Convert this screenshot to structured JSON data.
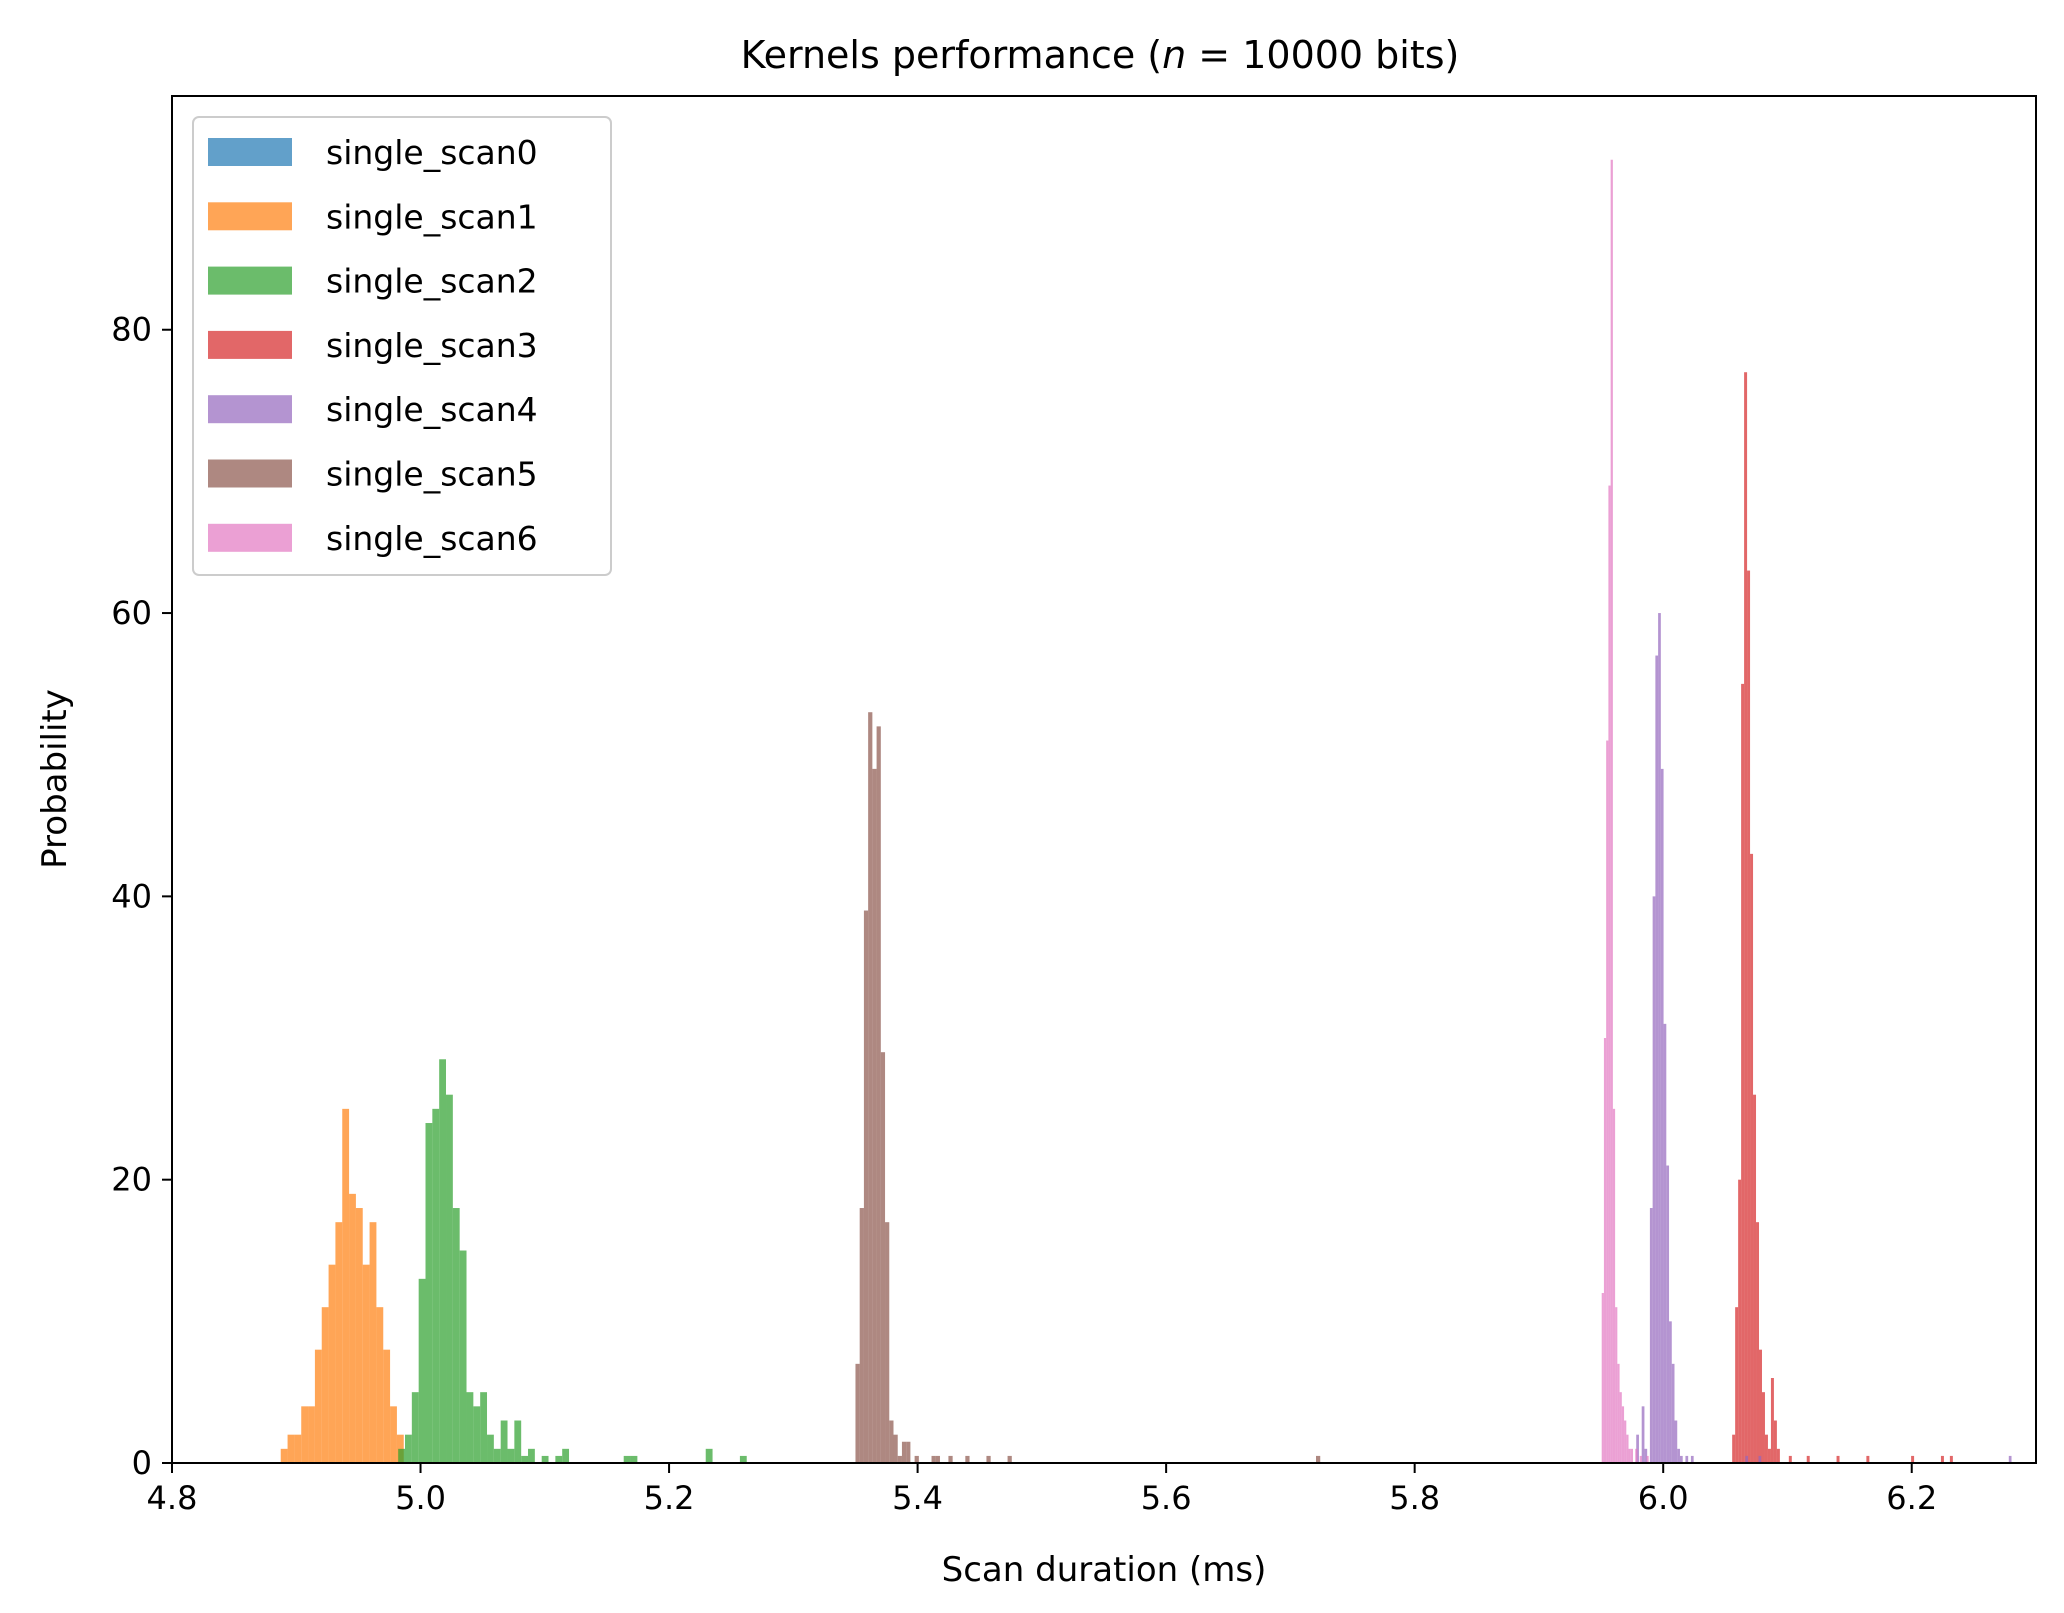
{
  "chart_data": {
    "type": "histogram",
    "title": "Kernels performance (n = 10000 bits)",
    "title_parts": {
      "prefix": "Kernels performance (",
      "var": "n",
      "suffix": " = 10000 bits)"
    },
    "xlabel": "Scan duration (ms)",
    "ylabel": "Probability",
    "xlim": [
      4.8,
      6.3
    ],
    "ylim": [
      0,
      96.5
    ],
    "xticks": [
      4.8,
      5.0,
      5.2,
      5.4,
      5.6,
      5.8,
      6.0,
      6.2
    ],
    "xtick_labels": [
      "4.8",
      "5.0",
      "5.2",
      "5.4",
      "5.6",
      "5.8",
      "6.0",
      "6.2"
    ],
    "yticks": [
      0,
      20,
      40,
      60,
      80
    ],
    "ytick_labels": [
      "0",
      "20",
      "40",
      "60",
      "80"
    ],
    "grid": false,
    "legend_position": "top-left",
    "alpha": 0.7,
    "series": [
      {
        "name": "single_scan0",
        "color": "#1f77b4",
        "bin_width": 0.01,
        "bins": []
      },
      {
        "name": "single_scan1",
        "color": "#ff7f0e",
        "bin_width": 0.0055,
        "bins": [
          [
            4.8875,
            1
          ],
          [
            4.893,
            2
          ],
          [
            4.8985,
            2
          ],
          [
            4.904,
            4
          ],
          [
            4.9095,
            4
          ],
          [
            4.915,
            8
          ],
          [
            4.9205,
            11
          ],
          [
            4.926,
            14
          ],
          [
            4.9315,
            17
          ],
          [
            4.937,
            25
          ],
          [
            4.9425,
            19
          ],
          [
            4.948,
            18
          ],
          [
            4.9535,
            14
          ],
          [
            4.959,
            17
          ],
          [
            4.9645,
            11
          ],
          [
            4.97,
            8
          ],
          [
            4.9755,
            4
          ],
          [
            4.981,
            2
          ]
        ]
      },
      {
        "name": "single_scan2",
        "color": "#2ca02c",
        "bin_width": 0.0055,
        "bins": [
          [
            4.982,
            1
          ],
          [
            4.9875,
            2
          ],
          [
            4.993,
            5
          ],
          [
            4.9985,
            13
          ],
          [
            5.004,
            24
          ],
          [
            5.0095,
            25
          ],
          [
            5.015,
            28.5
          ],
          [
            5.0205,
            26
          ],
          [
            5.026,
            18
          ],
          [
            5.0315,
            15
          ],
          [
            5.037,
            5
          ],
          [
            5.0425,
            4
          ],
          [
            5.048,
            5
          ],
          [
            5.0535,
            2
          ],
          [
            5.059,
            1
          ],
          [
            5.0645,
            3
          ],
          [
            5.07,
            1
          ],
          [
            5.0755,
            3
          ],
          [
            5.081,
            0.5
          ],
          [
            5.0865,
            1
          ],
          [
            5.0975,
            0.5
          ],
          [
            5.1085,
            0.5
          ],
          [
            5.114,
            1
          ],
          [
            5.1635,
            0.5
          ],
          [
            5.169,
            0.5
          ],
          [
            5.2295,
            1
          ],
          [
            5.257,
            0.5
          ]
        ]
      },
      {
        "name": "single_scan3",
        "color": "#d62728",
        "bin_width": 0.0024,
        "bins": [
          [
            6.0555,
            2
          ],
          [
            6.0579,
            11
          ],
          [
            6.0603,
            20
          ],
          [
            6.0627,
            55
          ],
          [
            6.0651,
            77
          ],
          [
            6.0675,
            63
          ],
          [
            6.0699,
            43
          ],
          [
            6.0723,
            26
          ],
          [
            6.0747,
            17
          ],
          [
            6.0771,
            8
          ],
          [
            6.0795,
            5
          ],
          [
            6.0819,
            2
          ],
          [
            6.0843,
            1
          ],
          [
            6.0867,
            6
          ],
          [
            6.0891,
            3
          ],
          [
            6.0915,
            1
          ],
          [
            6.1011,
            0.5
          ],
          [
            6.1155,
            0.5
          ],
          [
            6.1395,
            0.5
          ],
          [
            6.1635,
            0.5
          ],
          [
            6.1995,
            0.5
          ],
          [
            6.2235,
            0.5
          ],
          [
            6.2307,
            0.5
          ]
        ]
      },
      {
        "name": "single_scan4",
        "color": "#9467bd",
        "bin_width": 0.0022,
        "bins": [
          [
            5.9783,
            2
          ],
          [
            5.9827,
            4
          ],
          [
            5.9849,
            1
          ],
          [
            5.9893,
            18
          ],
          [
            5.9915,
            40
          ],
          [
            5.9937,
            57
          ],
          [
            5.9959,
            60
          ],
          [
            5.9981,
            49
          ],
          [
            6.0003,
            31
          ],
          [
            6.0025,
            21
          ],
          [
            6.0047,
            10
          ],
          [
            6.0069,
            7
          ],
          [
            6.0091,
            3
          ],
          [
            6.0113,
            1
          ],
          [
            6.0135,
            0.5
          ],
          [
            6.0179,
            0.5
          ],
          [
            6.0223,
            0.5
          ],
          [
            6.0661,
            0.5
          ],
          [
            6.0767,
            0.5
          ],
          [
            6.2781,
            0.5
          ]
        ]
      },
      {
        "name": "single_scan5",
        "color": "#8c564b",
        "bin_width": 0.0034,
        "bins": [
          [
            5.35,
            7
          ],
          [
            5.3534,
            18
          ],
          [
            5.3568,
            39
          ],
          [
            5.3602,
            53
          ],
          [
            5.3636,
            49
          ],
          [
            5.367,
            52
          ],
          [
            5.3704,
            29
          ],
          [
            5.3738,
            17
          ],
          [
            5.3772,
            3
          ],
          [
            5.3806,
            2
          ],
          [
            5.384,
            0.5
          ],
          [
            5.3874,
            1.5
          ],
          [
            5.3908,
            1.5
          ],
          [
            5.3976,
            0.5
          ],
          [
            5.4112,
            0.5
          ],
          [
            5.4146,
            0.5
          ],
          [
            5.4248,
            0.5
          ],
          [
            5.4384,
            0.5
          ],
          [
            5.4554,
            0.5
          ],
          [
            5.4724,
            0.5
          ],
          [
            5.7206,
            0.5
          ]
        ]
      },
      {
        "name": "single_scan6",
        "color": "#e377c2",
        "bin_width": 0.0018,
        "bins": [
          [
            5.9505,
            12
          ],
          [
            5.9523,
            30
          ],
          [
            5.9541,
            51
          ],
          [
            5.9559,
            69
          ],
          [
            5.9577,
            92
          ],
          [
            5.9595,
            25
          ],
          [
            5.9613,
            11
          ],
          [
            5.9631,
            7
          ],
          [
            5.9649,
            5
          ],
          [
            5.9667,
            4
          ],
          [
            5.9685,
            3
          ],
          [
            5.9703,
            2
          ],
          [
            5.9721,
            1
          ],
          [
            5.9739,
            1
          ],
          [
            5.9775,
            1
          ],
          [
            5.9811,
            0.5
          ],
          [
            5.9865,
            0.5
          ]
        ]
      }
    ]
  }
}
